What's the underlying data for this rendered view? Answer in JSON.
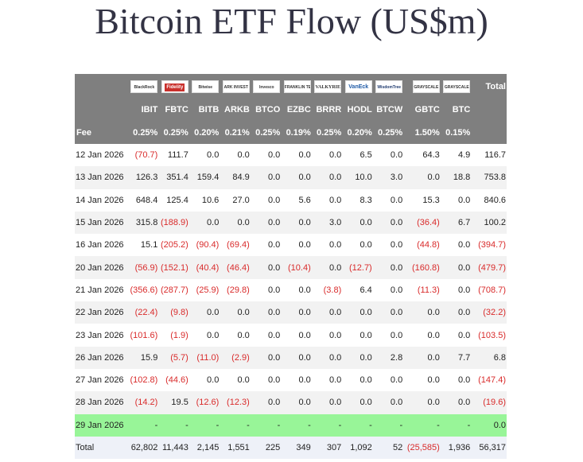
{
  "title": "Bitcoin ETF Flow (US$m)",
  "issuers": [
    "BlackRock",
    "Fidelity",
    "Bitwise",
    "ARK INVEST",
    "Invesco",
    "FRANKLIN TEMPLETON",
    "VALKYRIE",
    "VanEck",
    "WisdomTree",
    "GRAYSCALE",
    "GRAYSCALE"
  ],
  "total_header": "Total",
  "tickers": [
    "IBIT",
    "FBTC",
    "BITB",
    "ARKB",
    "BTCO",
    "EZBC",
    "BRRR",
    "HODL",
    "BTCW",
    "GBTC",
    "BTC"
  ],
  "fee_label": "Fee",
  "fees": [
    "0.25%",
    "0.25%",
    "0.20%",
    "0.21%",
    "0.25%",
    "0.19%",
    "0.25%",
    "0.20%",
    "0.25%",
    "1.50%",
    "0.15%"
  ],
  "rows": [
    {
      "date": "12 Jan 2026",
      "values": [
        "(70.7)",
        "111.7",
        "0.0",
        "0.0",
        "0.0",
        "0.0",
        "0.0",
        "6.5",
        "0.0",
        "64.3",
        "4.9",
        "116.7"
      ]
    },
    {
      "date": "13 Jan 2026",
      "values": [
        "126.3",
        "351.4",
        "159.4",
        "84.9",
        "0.0",
        "0.0",
        "0.0",
        "10.0",
        "3.0",
        "0.0",
        "18.8",
        "753.8"
      ]
    },
    {
      "date": "14 Jan 2026",
      "values": [
        "648.4",
        "125.4",
        "10.6",
        "27.0",
        "0.0",
        "5.6",
        "0.0",
        "8.3",
        "0.0",
        "15.3",
        "0.0",
        "840.6"
      ]
    },
    {
      "date": "15 Jan 2026",
      "values": [
        "315.8",
        "(188.9)",
        "0.0",
        "0.0",
        "0.0",
        "0.0",
        "3.0",
        "0.0",
        "0.0",
        "(36.4)",
        "6.7",
        "100.2"
      ]
    },
    {
      "date": "16 Jan 2026",
      "values": [
        "15.1",
        "(205.2)",
        "(90.4)",
        "(69.4)",
        "0.0",
        "0.0",
        "0.0",
        "0.0",
        "0.0",
        "(44.8)",
        "0.0",
        "(394.7)"
      ]
    },
    {
      "date": "20 Jan 2026",
      "values": [
        "(56.9)",
        "(152.1)",
        "(40.4)",
        "(46.4)",
        "0.0",
        "(10.4)",
        "0.0",
        "(12.7)",
        "0.0",
        "(160.8)",
        "0.0",
        "(479.7)"
      ]
    },
    {
      "date": "21 Jan 2026",
      "values": [
        "(356.6)",
        "(287.7)",
        "(25.9)",
        "(29.8)",
        "0.0",
        "0.0",
        "(3.8)",
        "6.4",
        "0.0",
        "(11.3)",
        "0.0",
        "(708.7)"
      ]
    },
    {
      "date": "22 Jan 2026",
      "values": [
        "(22.4)",
        "(9.8)",
        "0.0",
        "0.0",
        "0.0",
        "0.0",
        "0.0",
        "0.0",
        "0.0",
        "0.0",
        "0.0",
        "(32.2)"
      ]
    },
    {
      "date": "23 Jan 2026",
      "values": [
        "(101.6)",
        "(1.9)",
        "0.0",
        "0.0",
        "0.0",
        "0.0",
        "0.0",
        "0.0",
        "0.0",
        "0.0",
        "0.0",
        "(103.5)"
      ]
    },
    {
      "date": "26 Jan 2026",
      "values": [
        "15.9",
        "(5.7)",
        "(11.0)",
        "(2.9)",
        "0.0",
        "0.0",
        "0.0",
        "0.0",
        "2.8",
        "0.0",
        "7.7",
        "6.8"
      ]
    },
    {
      "date": "27 Jan 2026",
      "values": [
        "(102.8)",
        "(44.6)",
        "0.0",
        "0.0",
        "0.0",
        "0.0",
        "0.0",
        "0.0",
        "0.0",
        "0.0",
        "0.0",
        "(147.4)"
      ]
    },
    {
      "date": "28 Jan 2026",
      "values": [
        "(14.2)",
        "19.5",
        "(12.6)",
        "(12.3)",
        "0.0",
        "0.0",
        "0.0",
        "0.0",
        "0.0",
        "0.0",
        "0.0",
        "(19.6)"
      ]
    }
  ],
  "today_row": {
    "date": "29 Jan 2026",
    "values": [
      "-",
      "-",
      "-",
      "-",
      "-",
      "-",
      "-",
      "-",
      "-",
      "-",
      "-",
      "0.0"
    ]
  },
  "totals": {
    "label": "Total",
    "values": [
      "62,802",
      "11,443",
      "2,145",
      "1,551",
      "225",
      "349",
      "307",
      "1,092",
      "52",
      "(25,585)",
      "1,936",
      "56,317"
    ]
  },
  "colors": {
    "header_bg": "#7f7f7f",
    "negative": "#d92b2b",
    "today_bg": "#98f598",
    "total_bg": "#eef1f8",
    "alt_row": "#f2f2f2"
  }
}
